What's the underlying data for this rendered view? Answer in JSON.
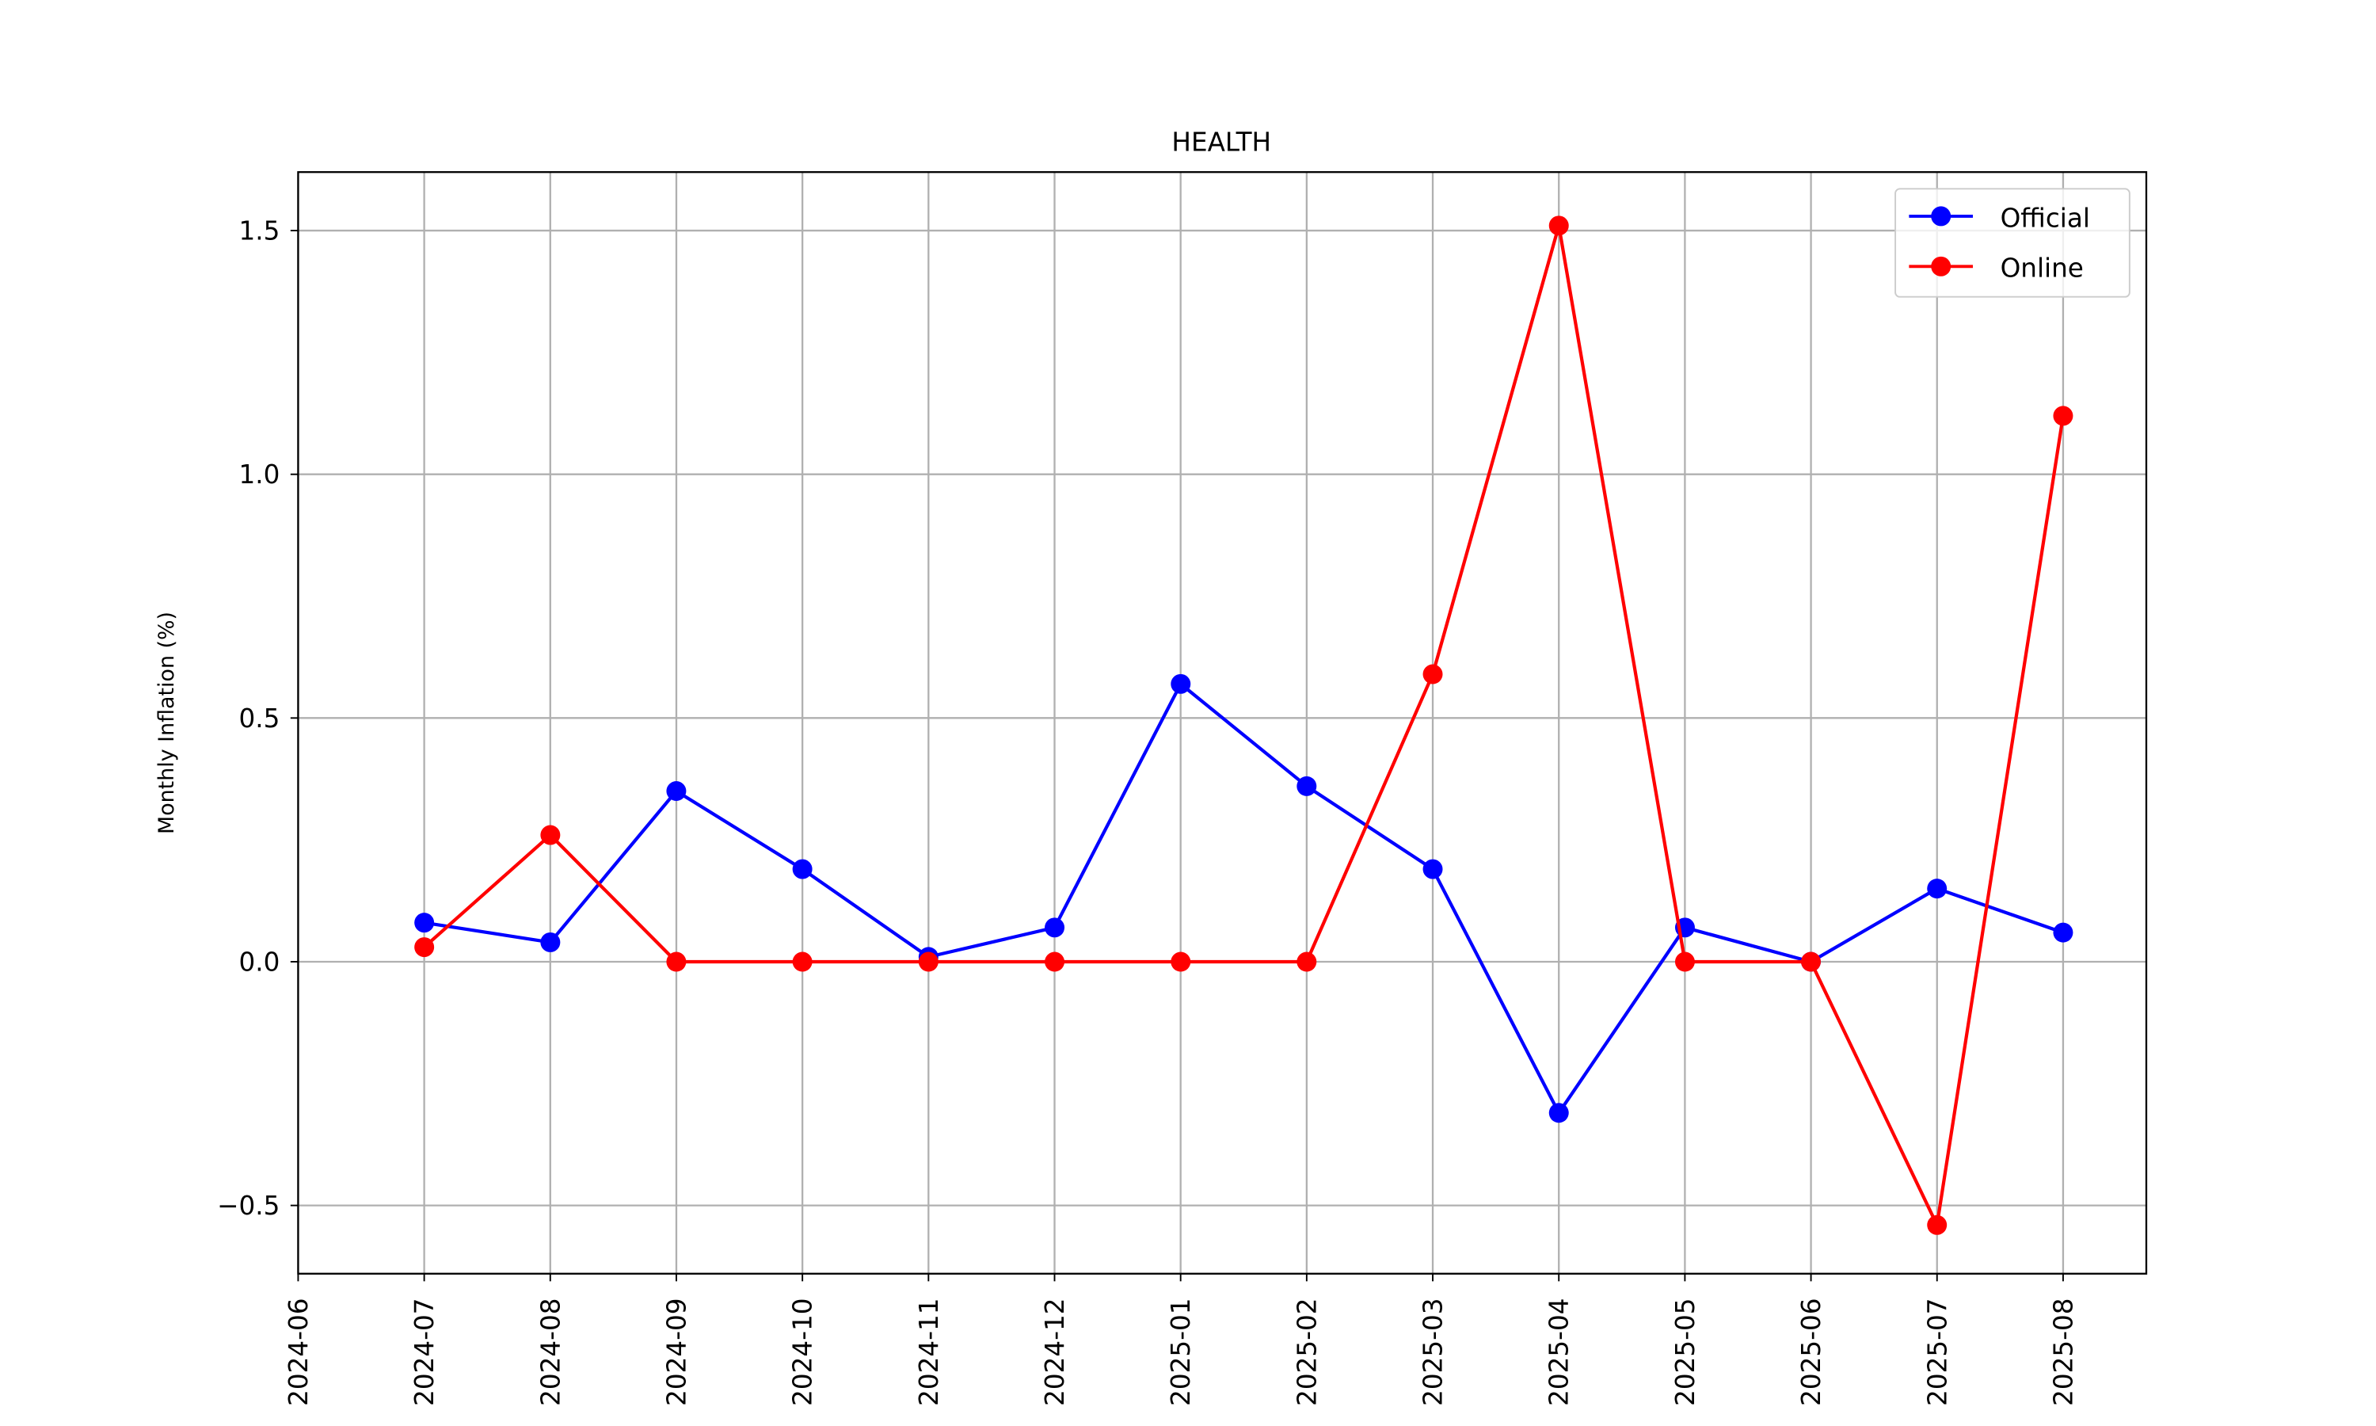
{
  "chart_data": {
    "type": "line",
    "title": "HEALTH",
    "xlabel": "",
    "ylabel": "Monthly Inflation (%)",
    "x_ticks": [
      "2024-06",
      "2024-07",
      "2024-08",
      "2024-09",
      "2024-10",
      "2024-11",
      "2024-12",
      "2025-01",
      "2025-02",
      "2025-03",
      "2025-04",
      "2025-05",
      "2025-06",
      "2025-07",
      "2025-08"
    ],
    "y_ticks": [
      -0.5,
      0.0,
      0.5,
      1.0,
      1.5
    ],
    "y_tick_labels": [
      "−0.5",
      "0.0",
      "0.5",
      "1.0",
      "1.5"
    ],
    "ylim": [
      -0.64,
      1.62
    ],
    "grid": true,
    "legend_position": "upper right",
    "x": [
      "2024-07-01",
      "2024-08-01",
      "2024-09-01",
      "2024-10-01",
      "2024-11-01",
      "2024-12-01",
      "2025-01-01",
      "2025-02-01",
      "2025-03-01",
      "2025-04-01",
      "2025-05-01",
      "2025-06-01",
      "2025-07-01",
      "2025-08-01"
    ],
    "series": [
      {
        "name": "Official",
        "color": "#0000ff",
        "values": [
          0.08,
          0.04,
          0.35,
          0.19,
          0.01,
          0.07,
          0.57,
          0.36,
          0.19,
          -0.31,
          0.07,
          0.0,
          0.15,
          0.06
        ]
      },
      {
        "name": "Online",
        "color": "#ff0000",
        "values": [
          0.03,
          0.26,
          0.0,
          0.0,
          0.0,
          0.0,
          0.0,
          0.0,
          0.59,
          1.51,
          0.0,
          0.0,
          -0.54,
          1.12
        ]
      }
    ]
  }
}
